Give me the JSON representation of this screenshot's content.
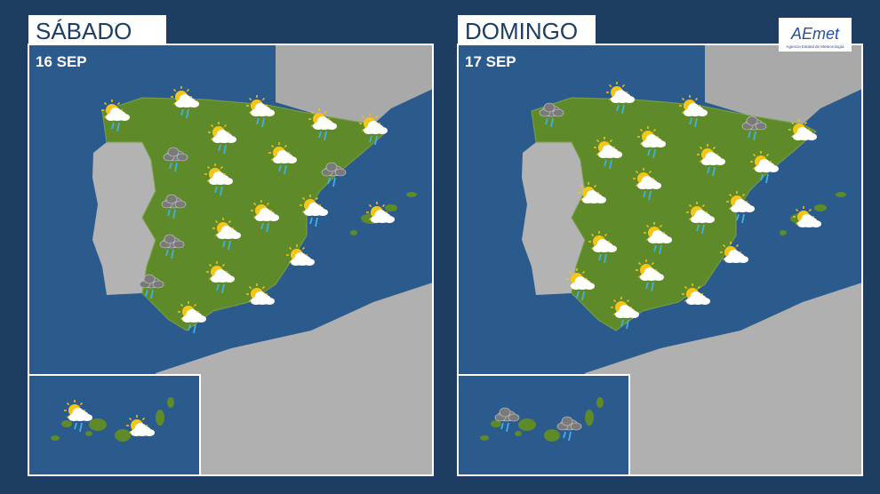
{
  "panels": [
    {
      "day": "SÁBADO",
      "date": "16 SEP"
    },
    {
      "day": "DOMINGO",
      "date": "17 SEP"
    }
  ],
  "logo": {
    "name": "AEmet",
    "subtitle": "Agencia Estatal de Meteorología"
  }
}
